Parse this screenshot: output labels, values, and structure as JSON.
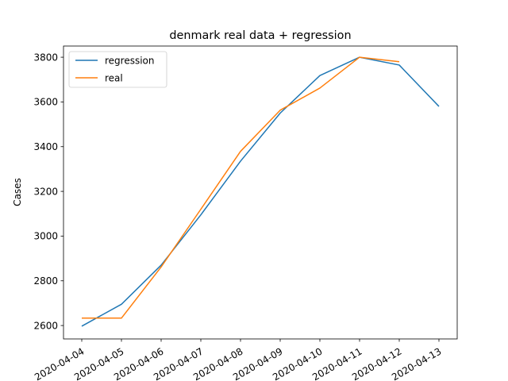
{
  "chart_data": {
    "type": "line",
    "title": "denmark real data + regression",
    "xlabel": "",
    "ylabel": "Cases",
    "ylim": [
      2540,
      3850
    ],
    "yticks": [
      2600,
      2800,
      3000,
      3200,
      3400,
      3600,
      3800
    ],
    "ytick_labels": [
      "2600",
      "2800",
      "3000",
      "3200",
      "3400",
      "3600",
      "3800"
    ],
    "x": [
      "2020-04-04",
      "2020-04-05",
      "2020-04-06",
      "2020-04-07",
      "2020-04-08",
      "2020-04-09",
      "2020-04-10",
      "2020-04-11",
      "2020-04-12",
      "2020-04-13"
    ],
    "legend_position": "upper-left",
    "grid": false,
    "series": [
      {
        "name": "regression",
        "color": "#1f77b4",
        "values": [
          2597,
          2695,
          2870,
          3095,
          3335,
          3550,
          3718,
          3800,
          3765,
          3580
        ]
      },
      {
        "name": "real",
        "color": "#ff7f0e",
        "values": [
          2633,
          2633,
          2862,
          3120,
          3379,
          3563,
          3662,
          3800,
          3780,
          null
        ]
      }
    ]
  }
}
